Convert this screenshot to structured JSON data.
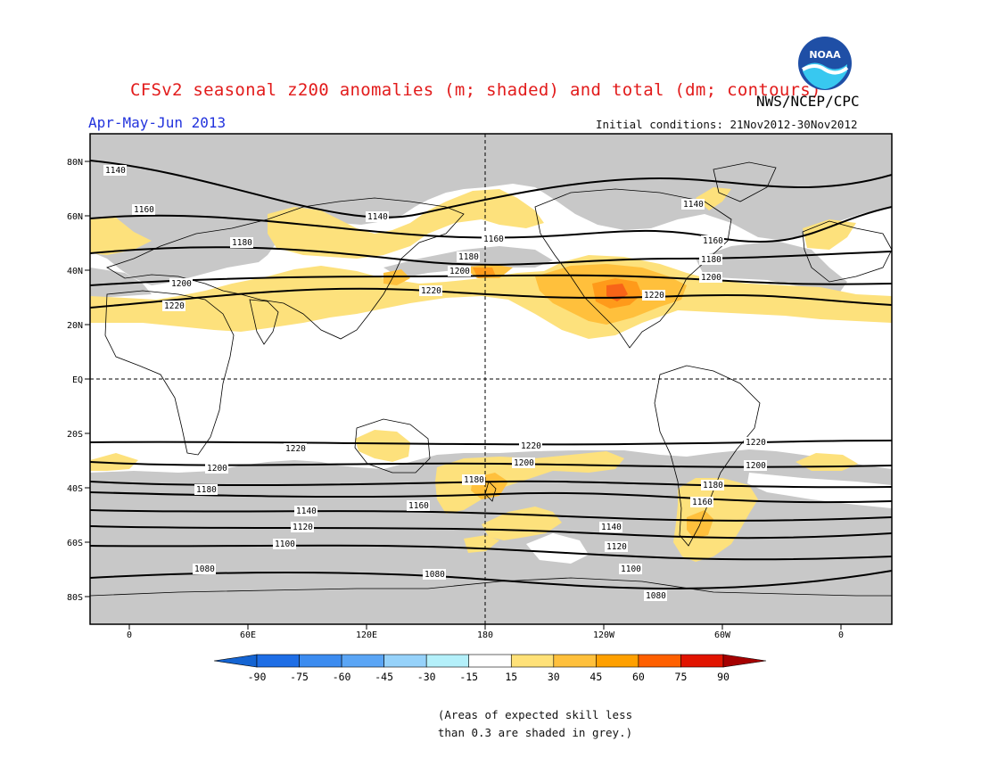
{
  "header": {
    "title": "CFSv2 seasonal z200 anomalies (m; shaded) and total (dm; contours)",
    "agency": "NWS/NCEP/CPC",
    "period": "Apr-May-Jun 2013",
    "initial_conditions": "Initial conditions: 21Nov2012-30Nov2012",
    "logo_text": "NOAA"
  },
  "map": {
    "lat_labels": [
      "80N",
      "60N",
      "40N",
      "20N",
      "EQ",
      "20S",
      "40S",
      "60S",
      "80S"
    ],
    "lon_labels": [
      "0",
      "60E",
      "120E",
      "180",
      "120W",
      "60W",
      "0"
    ],
    "contour_labels": [
      "1080",
      "1100",
      "1120",
      "1140",
      "1160",
      "1180",
      "1200",
      "1220"
    ]
  },
  "colorbar": {
    "ticks": [
      "-90",
      "-75",
      "-60",
      "-45",
      "-30",
      "-15",
      "15",
      "30",
      "45",
      "60",
      "75",
      "90"
    ],
    "colors": [
      "#1464d2",
      "#1e6ee6",
      "#3c8cf0",
      "#5aa5f5",
      "#96d2fa",
      "#b4f0fa",
      "#ffffff",
      "#ffe178",
      "#ffc03c",
      "#ffa000",
      "#ff6000",
      "#e11400",
      "#a50000"
    ]
  },
  "colors": {
    "grey_mask": "#c8c8c8",
    "anom_15_30": "#fde17c",
    "anom_30_45": "#ffc03c",
    "anom_45_60": "#ff9a1a",
    "anom_60_75": "#f86418"
  },
  "note": {
    "line1": "(Areas of expected skill less",
    "line2": "than 0.3 are shaded in grey.)"
  }
}
